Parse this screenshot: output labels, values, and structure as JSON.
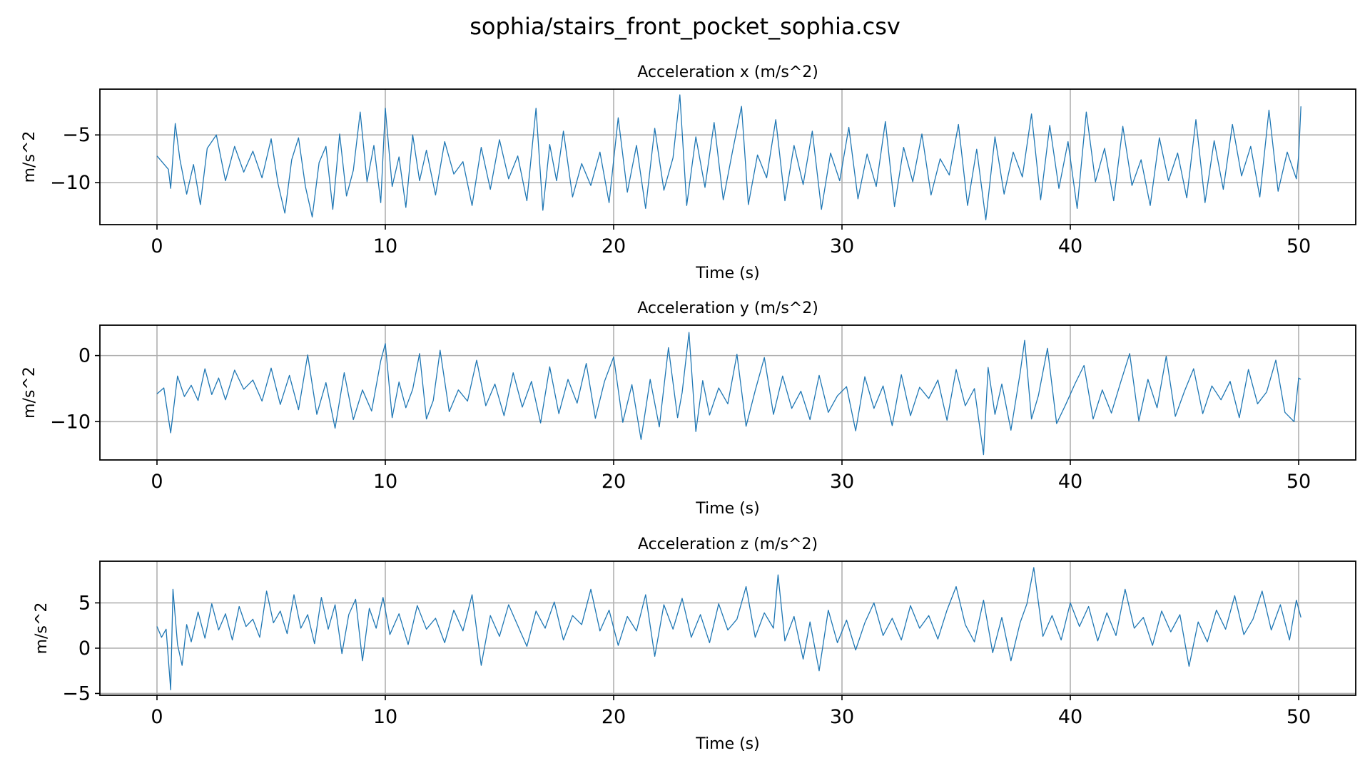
{
  "figure": {
    "title": "sophia/stairs_front_pocket_sophia.csv",
    "line_color": "#1f77b4"
  },
  "chart_data": [
    {
      "type": "line",
      "title": "Acceleration x (m/s^2)",
      "xlabel": "Time (s)",
      "ylabel": "m/s^2",
      "xlim": [
        -2.5,
        52.5
      ],
      "ylim": [
        -14.4,
        -0.2
      ],
      "xticks": [
        0,
        10,
        20,
        30,
        40,
        50
      ],
      "yticks": [
        -5,
        -10
      ],
      "grid": true,
      "series": [
        {
          "x": [
            0,
            0.5,
            0.6,
            0.8,
            1.0,
            1.3,
            1.6,
            1.9,
            2.2,
            2.6,
            3.0,
            3.4,
            3.8,
            4.2,
            4.6,
            5.0,
            5.3,
            5.6,
            5.9,
            6.2,
            6.5,
            6.8,
            7.1,
            7.4,
            7.7,
            8.0,
            8.3,
            8.6,
            8.9,
            9.2,
            9.5,
            9.8,
            10.0,
            10.3,
            10.6,
            10.9,
            11.2,
            11.5,
            11.8,
            12.2,
            12.6,
            13.0,
            13.4,
            13.8,
            14.2,
            14.6,
            15.0,
            15.4,
            15.8,
            16.2,
            16.6,
            16.9,
            17.2,
            17.5,
            17.8,
            18.2,
            18.6,
            19.0,
            19.4,
            19.8,
            20.2,
            20.6,
            21.0,
            21.4,
            21.8,
            22.2,
            22.6,
            22.9,
            23.2,
            23.6,
            24.0,
            24.4,
            24.8,
            25.2,
            25.6,
            25.9,
            26.3,
            26.7,
            27.1,
            27.5,
            27.9,
            28.3,
            28.7,
            29.1,
            29.5,
            29.9,
            30.3,
            30.7,
            31.1,
            31.5,
            31.9,
            32.3,
            32.7,
            33.1,
            33.5,
            33.9,
            34.3,
            34.7,
            35.1,
            35.5,
            35.9,
            36.3,
            36.7,
            37.1,
            37.5,
            37.9,
            38.3,
            38.7,
            39.1,
            39.5,
            39.9,
            40.3,
            40.7,
            41.1,
            41.5,
            41.9,
            42.3,
            42.7,
            43.1,
            43.5,
            43.9,
            44.3,
            44.7,
            45.1,
            45.5,
            45.9,
            46.3,
            46.7,
            47.1,
            47.5,
            47.9,
            48.3,
            48.7,
            49.1,
            49.5,
            49.9,
            50.0,
            50.1
          ],
          "values": [
            -7.2,
            -8.6,
            -10.6,
            -3.8,
            -7.5,
            -11.2,
            -8.1,
            -12.3,
            -6.4,
            -5.0,
            -9.8,
            -6.2,
            -8.9,
            -6.7,
            -9.5,
            -5.4,
            -10.1,
            -13.2,
            -7.6,
            -5.3,
            -10.4,
            -13.6,
            -7.9,
            -6.2,
            -12.8,
            -4.9,
            -11.4,
            -8.7,
            -2.6,
            -9.9,
            -6.1,
            -12.1,
            -2.2,
            -10.4,
            -7.3,
            -12.6,
            -5.0,
            -9.8,
            -6.6,
            -11.3,
            -5.7,
            -9.1,
            -7.8,
            -12.4,
            -6.3,
            -10.7,
            -5.5,
            -9.6,
            -7.2,
            -11.9,
            -2.2,
            -12.9,
            -6.0,
            -9.8,
            -4.6,
            -11.5,
            -8.0,
            -10.3,
            -6.8,
            -12.1,
            -3.2,
            -11.0,
            -6.1,
            -12.7,
            -4.3,
            -10.8,
            -7.4,
            -0.8,
            -12.4,
            -5.2,
            -10.5,
            -3.7,
            -11.8,
            -6.8,
            -2.0,
            -12.3,
            -7.1,
            -9.5,
            -3.4,
            -11.9,
            -6.1,
            -10.2,
            -4.6,
            -12.8,
            -6.9,
            -9.8,
            -4.2,
            -11.7,
            -7.0,
            -10.4,
            -3.6,
            -12.5,
            -6.3,
            -9.9,
            -4.9,
            -11.3,
            -7.5,
            -9.2,
            -3.9,
            -12.4,
            -6.5,
            -13.9,
            -5.2,
            -11.2,
            -6.8,
            -9.4,
            -2.8,
            -11.8,
            -4.0,
            -10.6,
            -5.7,
            -12.7,
            -2.6,
            -9.9,
            -6.4,
            -11.9,
            -4.1,
            -10.3,
            -7.6,
            -12.4,
            -5.3,
            -9.8,
            -6.9,
            -11.6,
            -3.4,
            -12.1,
            -5.6,
            -10.7,
            -3.9,
            -9.3,
            -6.2,
            -11.5,
            -2.4,
            -10.9,
            -6.8,
            -9.6,
            -7.2,
            -2.0
          ]
        }
      ]
    },
    {
      "type": "line",
      "title": "Acceleration y (m/s^2)",
      "xlabel": "Time (s)",
      "ylabel": "m/s^2",
      "xlim": [
        -2.5,
        52.5
      ],
      "ylim": [
        -15.8,
        4.6
      ],
      "xticks": [
        0,
        10,
        20,
        30,
        40,
        50
      ],
      "yticks": [
        0,
        -10
      ],
      "grid": true,
      "series": [
        {
          "x": [
            0,
            0.3,
            0.6,
            0.9,
            1.2,
            1.5,
            1.8,
            2.1,
            2.4,
            2.7,
            3.0,
            3.4,
            3.8,
            4.2,
            4.6,
            5.0,
            5.4,
            5.8,
            6.2,
            6.6,
            7.0,
            7.4,
            7.8,
            8.2,
            8.6,
            9.0,
            9.4,
            9.8,
            10.0,
            10.3,
            10.6,
            10.9,
            11.2,
            11.5,
            11.8,
            12.1,
            12.4,
            12.8,
            13.2,
            13.6,
            14.0,
            14.4,
            14.8,
            15.2,
            15.6,
            16.0,
            16.4,
            16.8,
            17.2,
            17.6,
            18.0,
            18.4,
            18.8,
            19.2,
            19.6,
            20.0,
            20.4,
            20.8,
            21.2,
            21.6,
            22.0,
            22.4,
            22.8,
            23.0,
            23.3,
            23.6,
            23.9,
            24.2,
            24.6,
            25.0,
            25.4,
            25.8,
            26.2,
            26.6,
            27.0,
            27.4,
            27.8,
            28.2,
            28.6,
            29.0,
            29.4,
            29.8,
            30.2,
            30.6,
            31.0,
            31.4,
            31.8,
            32.2,
            32.6,
            33.0,
            33.4,
            33.8,
            34.2,
            34.6,
            35.0,
            35.4,
            35.8,
            36.2,
            36.4,
            36.7,
            37.0,
            37.4,
            37.8,
            38.0,
            38.3,
            38.6,
            39.0,
            39.4,
            39.8,
            40.2,
            40.6,
            41.0,
            41.4,
            41.8,
            42.2,
            42.6,
            43.0,
            43.4,
            43.8,
            44.2,
            44.6,
            45.0,
            45.4,
            45.8,
            46.2,
            46.6,
            47.0,
            47.4,
            47.8,
            48.2,
            48.6,
            49.0,
            49.4,
            49.8,
            50.0,
            50.1
          ],
          "values": [
            -5.8,
            -4.9,
            -11.7,
            -3.1,
            -6.2,
            -4.5,
            -6.8,
            -2.0,
            -5.9,
            -3.4,
            -6.7,
            -2.2,
            -5.1,
            -3.7,
            -6.9,
            -1.9,
            -7.4,
            -3.0,
            -8.2,
            0.1,
            -8.9,
            -4.1,
            -11.0,
            -2.6,
            -9.7,
            -5.2,
            -8.4,
            -0.8,
            1.8,
            -9.4,
            -4.0,
            -7.9,
            -5.1,
            0.3,
            -9.6,
            -6.8,
            0.8,
            -8.5,
            -5.2,
            -6.9,
            -0.7,
            -7.6,
            -4.3,
            -9.1,
            -2.6,
            -7.8,
            -3.9,
            -10.2,
            -1.7,
            -8.8,
            -3.6,
            -7.2,
            -1.2,
            -9.5,
            -3.9,
            -0.2,
            -10.1,
            -4.4,
            -12.7,
            -3.6,
            -10.8,
            1.2,
            -9.4,
            -5.6,
            3.5,
            -11.5,
            -3.8,
            -9.0,
            -4.9,
            -7.3,
            0.2,
            -10.7,
            -5.3,
            -0.3,
            -8.9,
            -3.1,
            -8.0,
            -5.4,
            -9.7,
            -3.0,
            -8.6,
            -6.1,
            -4.7,
            -11.4,
            -3.2,
            -8.0,
            -4.6,
            -10.6,
            -2.9,
            -9.1,
            -4.8,
            -6.5,
            -3.7,
            -9.8,
            -2.1,
            -7.6,
            -5.0,
            -15.0,
            -1.8,
            -8.9,
            -4.3,
            -11.3,
            -2.7,
            2.3,
            -9.6,
            -6.1,
            1.1,
            -10.3,
            -7.4,
            -4.3,
            -1.5,
            -9.6,
            -5.2,
            -8.7,
            -4.1,
            0.3,
            -9.9,
            -3.6,
            -7.9,
            -0.1,
            -9.2,
            -5.4,
            -2.0,
            -8.8,
            -4.6,
            -6.7,
            -3.9,
            -9.4,
            -2.1,
            -7.3,
            -5.5,
            -0.7,
            -8.6,
            -10.0,
            -3.4,
            -3.6
          ]
        }
      ]
    },
    {
      "type": "line",
      "title": "Acceleration z (m/s^2)",
      "xlabel": "Time (s)",
      "ylabel": "m/s^2",
      "xlim": [
        -2.5,
        52.5
      ],
      "ylim": [
        -5.2,
        9.6
      ],
      "xticks": [
        0,
        10,
        20,
        30,
        40,
        50
      ],
      "yticks": [
        5,
        0,
        -5
      ],
      "grid": true,
      "series": [
        {
          "x": [
            0,
            0.2,
            0.4,
            0.6,
            0.7,
            0.9,
            1.1,
            1.3,
            1.5,
            1.8,
            2.1,
            2.4,
            2.7,
            3.0,
            3.3,
            3.6,
            3.9,
            4.2,
            4.5,
            4.8,
            5.1,
            5.4,
            5.7,
            6.0,
            6.3,
            6.6,
            6.9,
            7.2,
            7.5,
            7.8,
            8.1,
            8.4,
            8.7,
            9.0,
            9.3,
            9.6,
            9.9,
            10.2,
            10.6,
            11.0,
            11.4,
            11.8,
            12.2,
            12.6,
            13.0,
            13.4,
            13.8,
            14.2,
            14.6,
            15.0,
            15.4,
            15.8,
            16.2,
            16.6,
            17.0,
            17.4,
            17.8,
            18.2,
            18.6,
            19.0,
            19.4,
            19.8,
            20.2,
            20.6,
            21.0,
            21.4,
            21.8,
            22.2,
            22.6,
            23.0,
            23.4,
            23.8,
            24.2,
            24.6,
            25.0,
            25.4,
            25.8,
            26.2,
            26.6,
            27.0,
            27.2,
            27.5,
            27.9,
            28.3,
            28.6,
            29.0,
            29.4,
            29.8,
            30.2,
            30.6,
            31.0,
            31.4,
            31.8,
            32.2,
            32.6,
            33.0,
            33.4,
            33.8,
            34.2,
            34.6,
            35.0,
            35.4,
            35.8,
            36.2,
            36.6,
            37.0,
            37.4,
            37.8,
            38.1,
            38.4,
            38.8,
            39.2,
            39.6,
            40.0,
            40.4,
            40.8,
            41.2,
            41.6,
            42.0,
            42.4,
            42.8,
            43.2,
            43.6,
            44.0,
            44.4,
            44.8,
            45.2,
            45.6,
            46.0,
            46.4,
            46.8,
            47.2,
            47.6,
            48.0,
            48.4,
            48.8,
            49.2,
            49.6,
            49.9,
            50.1
          ],
          "values": [
            2.4,
            1.2,
            2.1,
            -4.6,
            6.5,
            0.4,
            -1.9,
            2.6,
            0.7,
            4.0,
            1.1,
            4.9,
            2.0,
            3.8,
            0.9,
            4.6,
            2.4,
            3.2,
            1.2,
            6.3,
            2.8,
            4.1,
            1.6,
            5.9,
            2.2,
            3.7,
            0.5,
            5.6,
            2.1,
            4.8,
            -0.6,
            3.7,
            5.4,
            -1.4,
            4.4,
            2.2,
            5.6,
            1.5,
            3.8,
            0.4,
            4.7,
            2.1,
            3.3,
            0.6,
            4.2,
            1.9,
            5.9,
            -1.9,
            3.6,
            1.3,
            4.8,
            2.5,
            0.2,
            4.1,
            2.2,
            5.1,
            0.9,
            3.6,
            2.6,
            6.5,
            1.9,
            4.2,
            0.3,
            3.5,
            1.9,
            5.9,
            -0.9,
            4.8,
            2.1,
            5.5,
            1.2,
            3.7,
            0.6,
            4.9,
            2.0,
            3.2,
            6.8,
            1.2,
            3.9,
            2.2,
            8.1,
            0.8,
            3.5,
            -1.2,
            2.9,
            -2.5,
            4.2,
            0.6,
            3.1,
            -0.2,
            2.8,
            5.0,
            1.4,
            3.3,
            0.9,
            4.7,
            2.2,
            3.6,
            1.0,
            4.2,
            6.8,
            2.6,
            0.7,
            5.3,
            -0.5,
            3.4,
            -1.4,
            2.8,
            4.9,
            8.9,
            1.3,
            3.6,
            0.9,
            5.0,
            2.4,
            4.6,
            0.8,
            3.9,
            1.4,
            6.5,
            2.2,
            3.4,
            0.3,
            4.1,
            1.8,
            3.7,
            -2.0,
            2.9,
            0.7,
            4.2,
            2.1,
            5.8,
            1.5,
            3.2,
            6.3,
            2.0,
            4.8,
            0.9,
            5.3,
            3.4
          ]
        }
      ]
    }
  ]
}
